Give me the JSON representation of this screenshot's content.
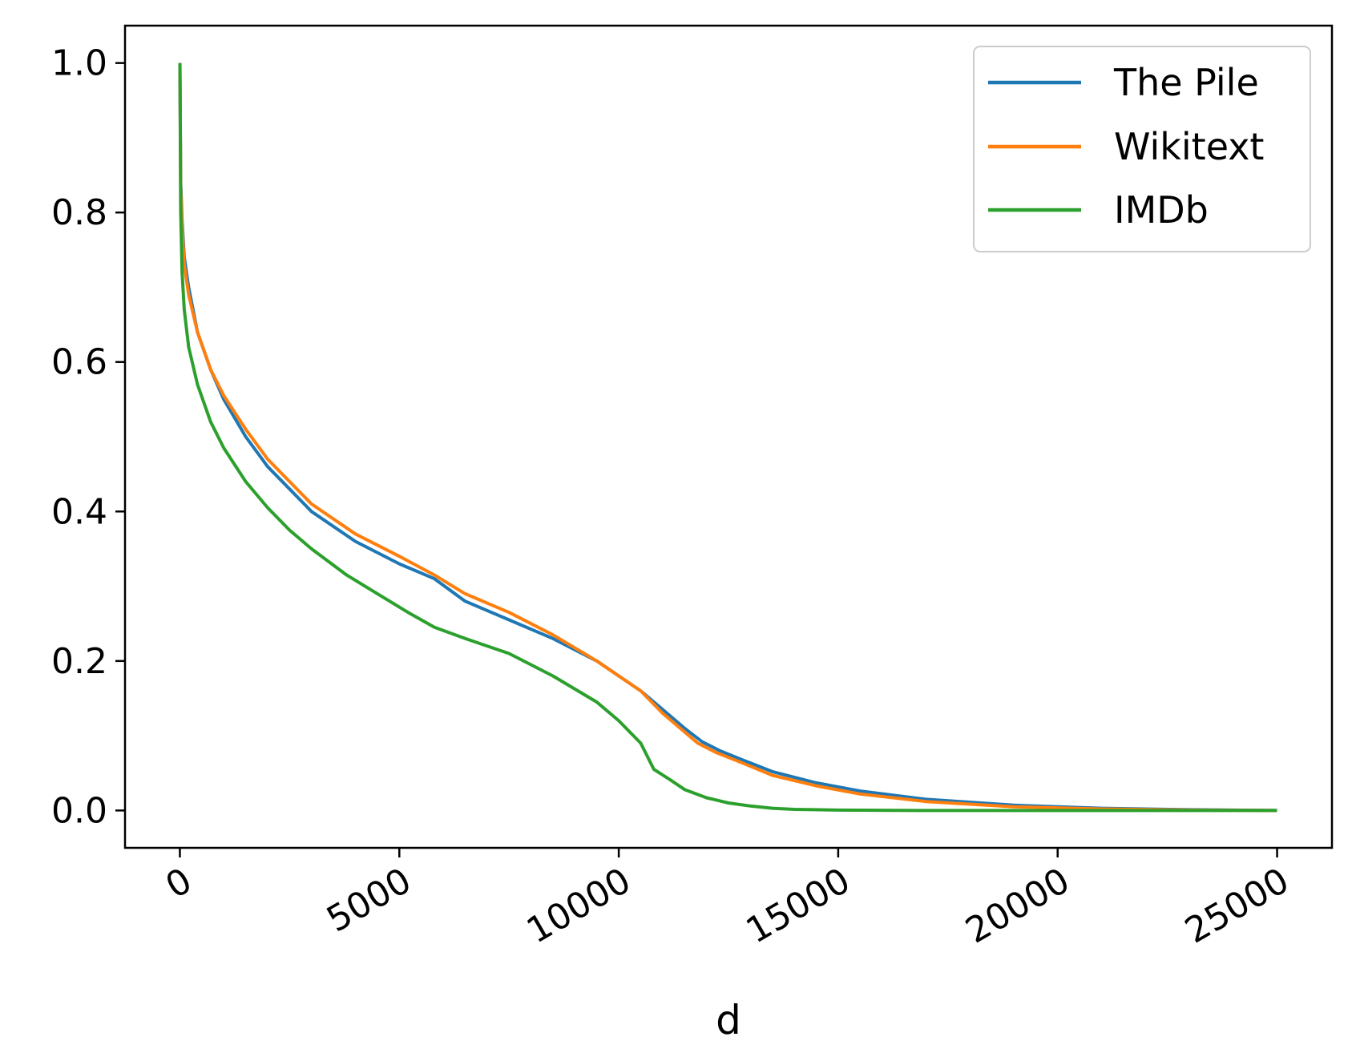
{
  "chart_data": {
    "type": "line",
    "title": "",
    "xlabel": "d",
    "ylabel": "",
    "xlim": [
      -1250,
      26250
    ],
    "ylim": [
      -0.05,
      1.05
    ],
    "xticks": [
      0,
      5000,
      10000,
      15000,
      20000,
      25000
    ],
    "xtick_labels": [
      "0",
      "5000",
      "10000",
      "15000",
      "20000",
      "25000"
    ],
    "yticks": [
      0.0,
      0.2,
      0.4,
      0.6,
      0.8,
      1.0
    ],
    "ytick_labels": [
      "0.0",
      "0.2",
      "0.4",
      "0.6",
      "0.8",
      "1.0"
    ],
    "xtick_rotation": 30,
    "grid": false,
    "legend_position": "top-right",
    "series": [
      {
        "name": "The Pile",
        "color": "#1f77b4",
        "x": [
          0,
          20,
          50,
          100,
          200,
          400,
          700,
          1000,
          1500,
          2000,
          2500,
          3000,
          4000,
          5000,
          5800,
          6500,
          7500,
          8500,
          9500,
          10000,
          10500,
          11000,
          11500,
          11900,
          12300,
          12800,
          13500,
          14500,
          15500,
          17000,
          19000,
          21000,
          23000,
          25000
        ],
        "y": [
          1.0,
          0.84,
          0.79,
          0.74,
          0.7,
          0.64,
          0.59,
          0.55,
          0.5,
          0.46,
          0.43,
          0.4,
          0.36,
          0.33,
          0.31,
          0.28,
          0.255,
          0.23,
          0.2,
          0.18,
          0.16,
          0.135,
          0.11,
          0.092,
          0.08,
          0.068,
          0.052,
          0.037,
          0.026,
          0.015,
          0.007,
          0.003,
          0.001,
          0.0
        ]
      },
      {
        "name": "Wikitext",
        "color": "#ff7f0e",
        "x": [
          0,
          20,
          50,
          100,
          200,
          400,
          700,
          1000,
          1500,
          2000,
          2500,
          3000,
          4000,
          5000,
          5800,
          6500,
          7500,
          8500,
          9500,
          10000,
          10500,
          11000,
          11500,
          11800,
          12200,
          12800,
          13500,
          14500,
          15500,
          17000,
          19000,
          21000,
          23000,
          25000
        ],
        "y": [
          1.0,
          0.83,
          0.78,
          0.73,
          0.69,
          0.64,
          0.59,
          0.555,
          0.51,
          0.47,
          0.44,
          0.41,
          0.37,
          0.34,
          0.315,
          0.29,
          0.265,
          0.235,
          0.2,
          0.18,
          0.16,
          0.13,
          0.105,
          0.09,
          0.078,
          0.064,
          0.047,
          0.033,
          0.022,
          0.012,
          0.005,
          0.002,
          0.0005,
          0.0
        ]
      },
      {
        "name": "IMDb",
        "color": "#2ca02c",
        "x": [
          0,
          20,
          50,
          100,
          200,
          400,
          700,
          1000,
          1500,
          2000,
          2500,
          3000,
          3800,
          4500,
          5200,
          5800,
          6500,
          7500,
          8500,
          9500,
          10000,
          10500,
          10800,
          11200,
          11500,
          12000,
          12500,
          13000,
          13500,
          14000,
          15000,
          17000,
          20000,
          25000
        ],
        "y": [
          1.0,
          0.8,
          0.72,
          0.67,
          0.62,
          0.57,
          0.52,
          0.485,
          0.44,
          0.405,
          0.375,
          0.35,
          0.315,
          0.29,
          0.265,
          0.245,
          0.23,
          0.21,
          0.18,
          0.145,
          0.12,
          0.09,
          0.055,
          0.04,
          0.028,
          0.017,
          0.01,
          0.006,
          0.003,
          0.0015,
          0.0005,
          0.0,
          0.0,
          0.0
        ]
      }
    ]
  }
}
